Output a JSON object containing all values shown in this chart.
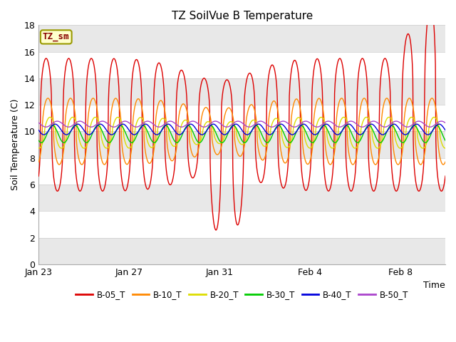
{
  "title": "TZ SoilVue B Temperature",
  "xlabel": "Time",
  "ylabel": "Soil Temperature (C)",
  "ylim": [
    0,
    18
  ],
  "yticks": [
    0,
    2,
    4,
    6,
    8,
    10,
    12,
    14,
    16,
    18
  ],
  "xtick_labels": [
    "Jan 23",
    "Jan 27",
    "Jan 31",
    "Feb 4",
    "Feb 8"
  ],
  "xtick_days": [
    0,
    4,
    8,
    12,
    16
  ],
  "n_days": 18,
  "annotation_text": "TZ_sm",
  "annotation_color": "#880000",
  "annotation_bg": "#ffffcc",
  "annotation_border": "#999900",
  "fig_bg": "#ffffff",
  "plot_bg": "#ffffff",
  "band_color": "#e8e8e8",
  "grid_color": "#cccccc",
  "series_colors": {
    "B-05_T": "#dd0000",
    "B-10_T": "#ff8800",
    "B-20_T": "#dddd00",
    "B-30_T": "#00cc00",
    "B-40_T": "#0000dd",
    "B-50_T": "#aa44cc"
  },
  "legend_labels": [
    "B-05_T",
    "B-10_T",
    "B-20_T",
    "B-30_T",
    "B-40_T",
    "B-50_T"
  ],
  "legend_colors": [
    "#dd0000",
    "#ff8800",
    "#dddd00",
    "#00cc00",
    "#0000dd",
    "#aa44cc"
  ],
  "band_pairs": [
    [
      0,
      2
    ],
    [
      4,
      6
    ],
    [
      8,
      10
    ],
    [
      12,
      14
    ],
    [
      16,
      18
    ]
  ]
}
